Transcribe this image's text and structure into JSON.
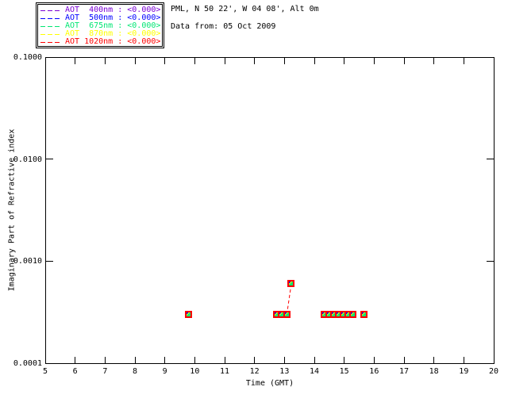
{
  "header": {
    "site_line": "PML, N 50 22', W 04 08', Alt 0m",
    "date_line": "Data from: 05 Oct 2009"
  },
  "legend": {
    "items": [
      {
        "label": "AOT  400nm : <0.000>",
        "wavelength": "400nm",
        "value": "<0.000>",
        "color": "#7A00D4"
      },
      {
        "label": "AOT  500nm : <0.000>",
        "wavelength": "500nm",
        "value": "<0.000>",
        "color": "#0000FF"
      },
      {
        "label": "AOT  675nm : <0.000>",
        "wavelength": "675nm",
        "value": "<0.000>",
        "color": "#00E673"
      },
      {
        "label": "AOT  870nm : <0.000>",
        "wavelength": "870nm",
        "value": "<0.000>",
        "color": "#FFFF00"
      },
      {
        "label": "AOT 1020nm : <0.000>",
        "wavelength": "1020nm",
        "value": "<0.000>",
        "color": "#FF0000"
      }
    ]
  },
  "chart_data": {
    "type": "scatter",
    "title": "",
    "xlabel": "Time (GMT)",
    "ylabel": "Imaginary Part of Refractive index",
    "xlim": [
      5,
      20
    ],
    "ylim": [
      0.0001,
      0.1
    ],
    "yscale": "log",
    "grid": false,
    "legend_position": "top-left-outside",
    "xticks": [
      5,
      6,
      7,
      8,
      9,
      10,
      11,
      12,
      13,
      14,
      15,
      16,
      17,
      18,
      19,
      20
    ],
    "ytick_values": [
      0.1,
      0.01,
      0.001,
      0.0001
    ],
    "ytick_labels": [
      "0.1000",
      "0.0100",
      "0.0010",
      "0.0001"
    ],
    "series_note": "All five AOT wavelength series (400, 500, 675, 870, 1020nm) overlap at identical values; markers are filled squares drawn on top of each other, red (1020nm) drawn last.",
    "points": [
      {
        "t": 9.79,
        "v": 0.0003
      },
      {
        "t": 12.73,
        "v": 0.0003
      },
      {
        "t": 12.91,
        "v": 0.0003
      },
      {
        "t": 13.08,
        "v": 0.0003
      },
      {
        "t": 13.23,
        "v": 0.0006
      },
      {
        "t": 14.34,
        "v": 0.0003
      },
      {
        "t": 14.5,
        "v": 0.0003
      },
      {
        "t": 14.66,
        "v": 0.0003
      },
      {
        "t": 14.82,
        "v": 0.0003
      },
      {
        "t": 14.98,
        "v": 0.0003
      },
      {
        "t": 15.14,
        "v": 0.0003
      },
      {
        "t": 15.3,
        "v": 0.0003
      },
      {
        "t": 15.65,
        "v": 0.0003
      }
    ],
    "connector": {
      "from": 3,
      "to": 4,
      "style": "dashed",
      "color": "#FF0000"
    },
    "axis_color": "#000000",
    "background_color": "#FFFFFF"
  }
}
